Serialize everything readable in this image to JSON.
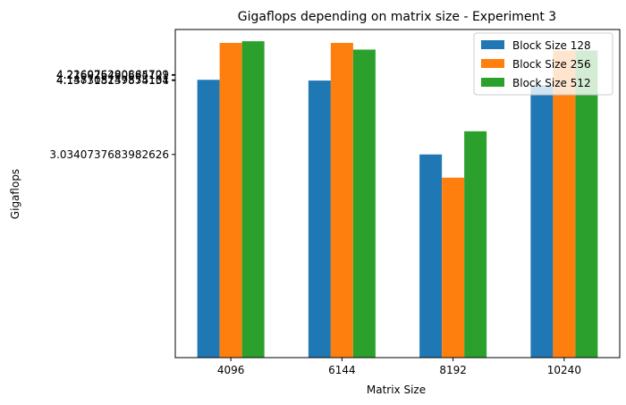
{
  "chart_data": {
    "type": "bar",
    "title": "Gigaflops depending on matrix size - Experiment 3",
    "xlabel": "Matrix Size",
    "ylabel": "Gigaflops",
    "categories": [
      "4096",
      "6144",
      "8192",
      "10240"
    ],
    "series": [
      {
        "name": "Block Size 128",
        "color": "#1f77b4",
        "values": [
          4.1487,
          4.1374,
          3.0341,
          4.07
        ]
      },
      {
        "name": "Block Size 256",
        "color": "#ff7f0e",
        "values": [
          4.7,
          4.7,
          2.6875,
          4.5875
        ]
      },
      {
        "name": "Block Size 512",
        "color": "#2ca02c",
        "values": [
          4.725,
          4.6,
          3.38,
          4.5875
        ]
      }
    ],
    "ylim": [
      0.0,
      4.9
    ],
    "ytick_values": [
      4.2269,
      4.216,
      4.1487,
      4.1374,
      3.0341
    ],
    "ytick_labels": [
      "4.226976280864709",
      "4.216025490685121",
      "4.148705249855101",
      "4.137318137874134",
      "3.0340737683982626"
    ],
    "grid": false,
    "legend_position": "top-right"
  }
}
